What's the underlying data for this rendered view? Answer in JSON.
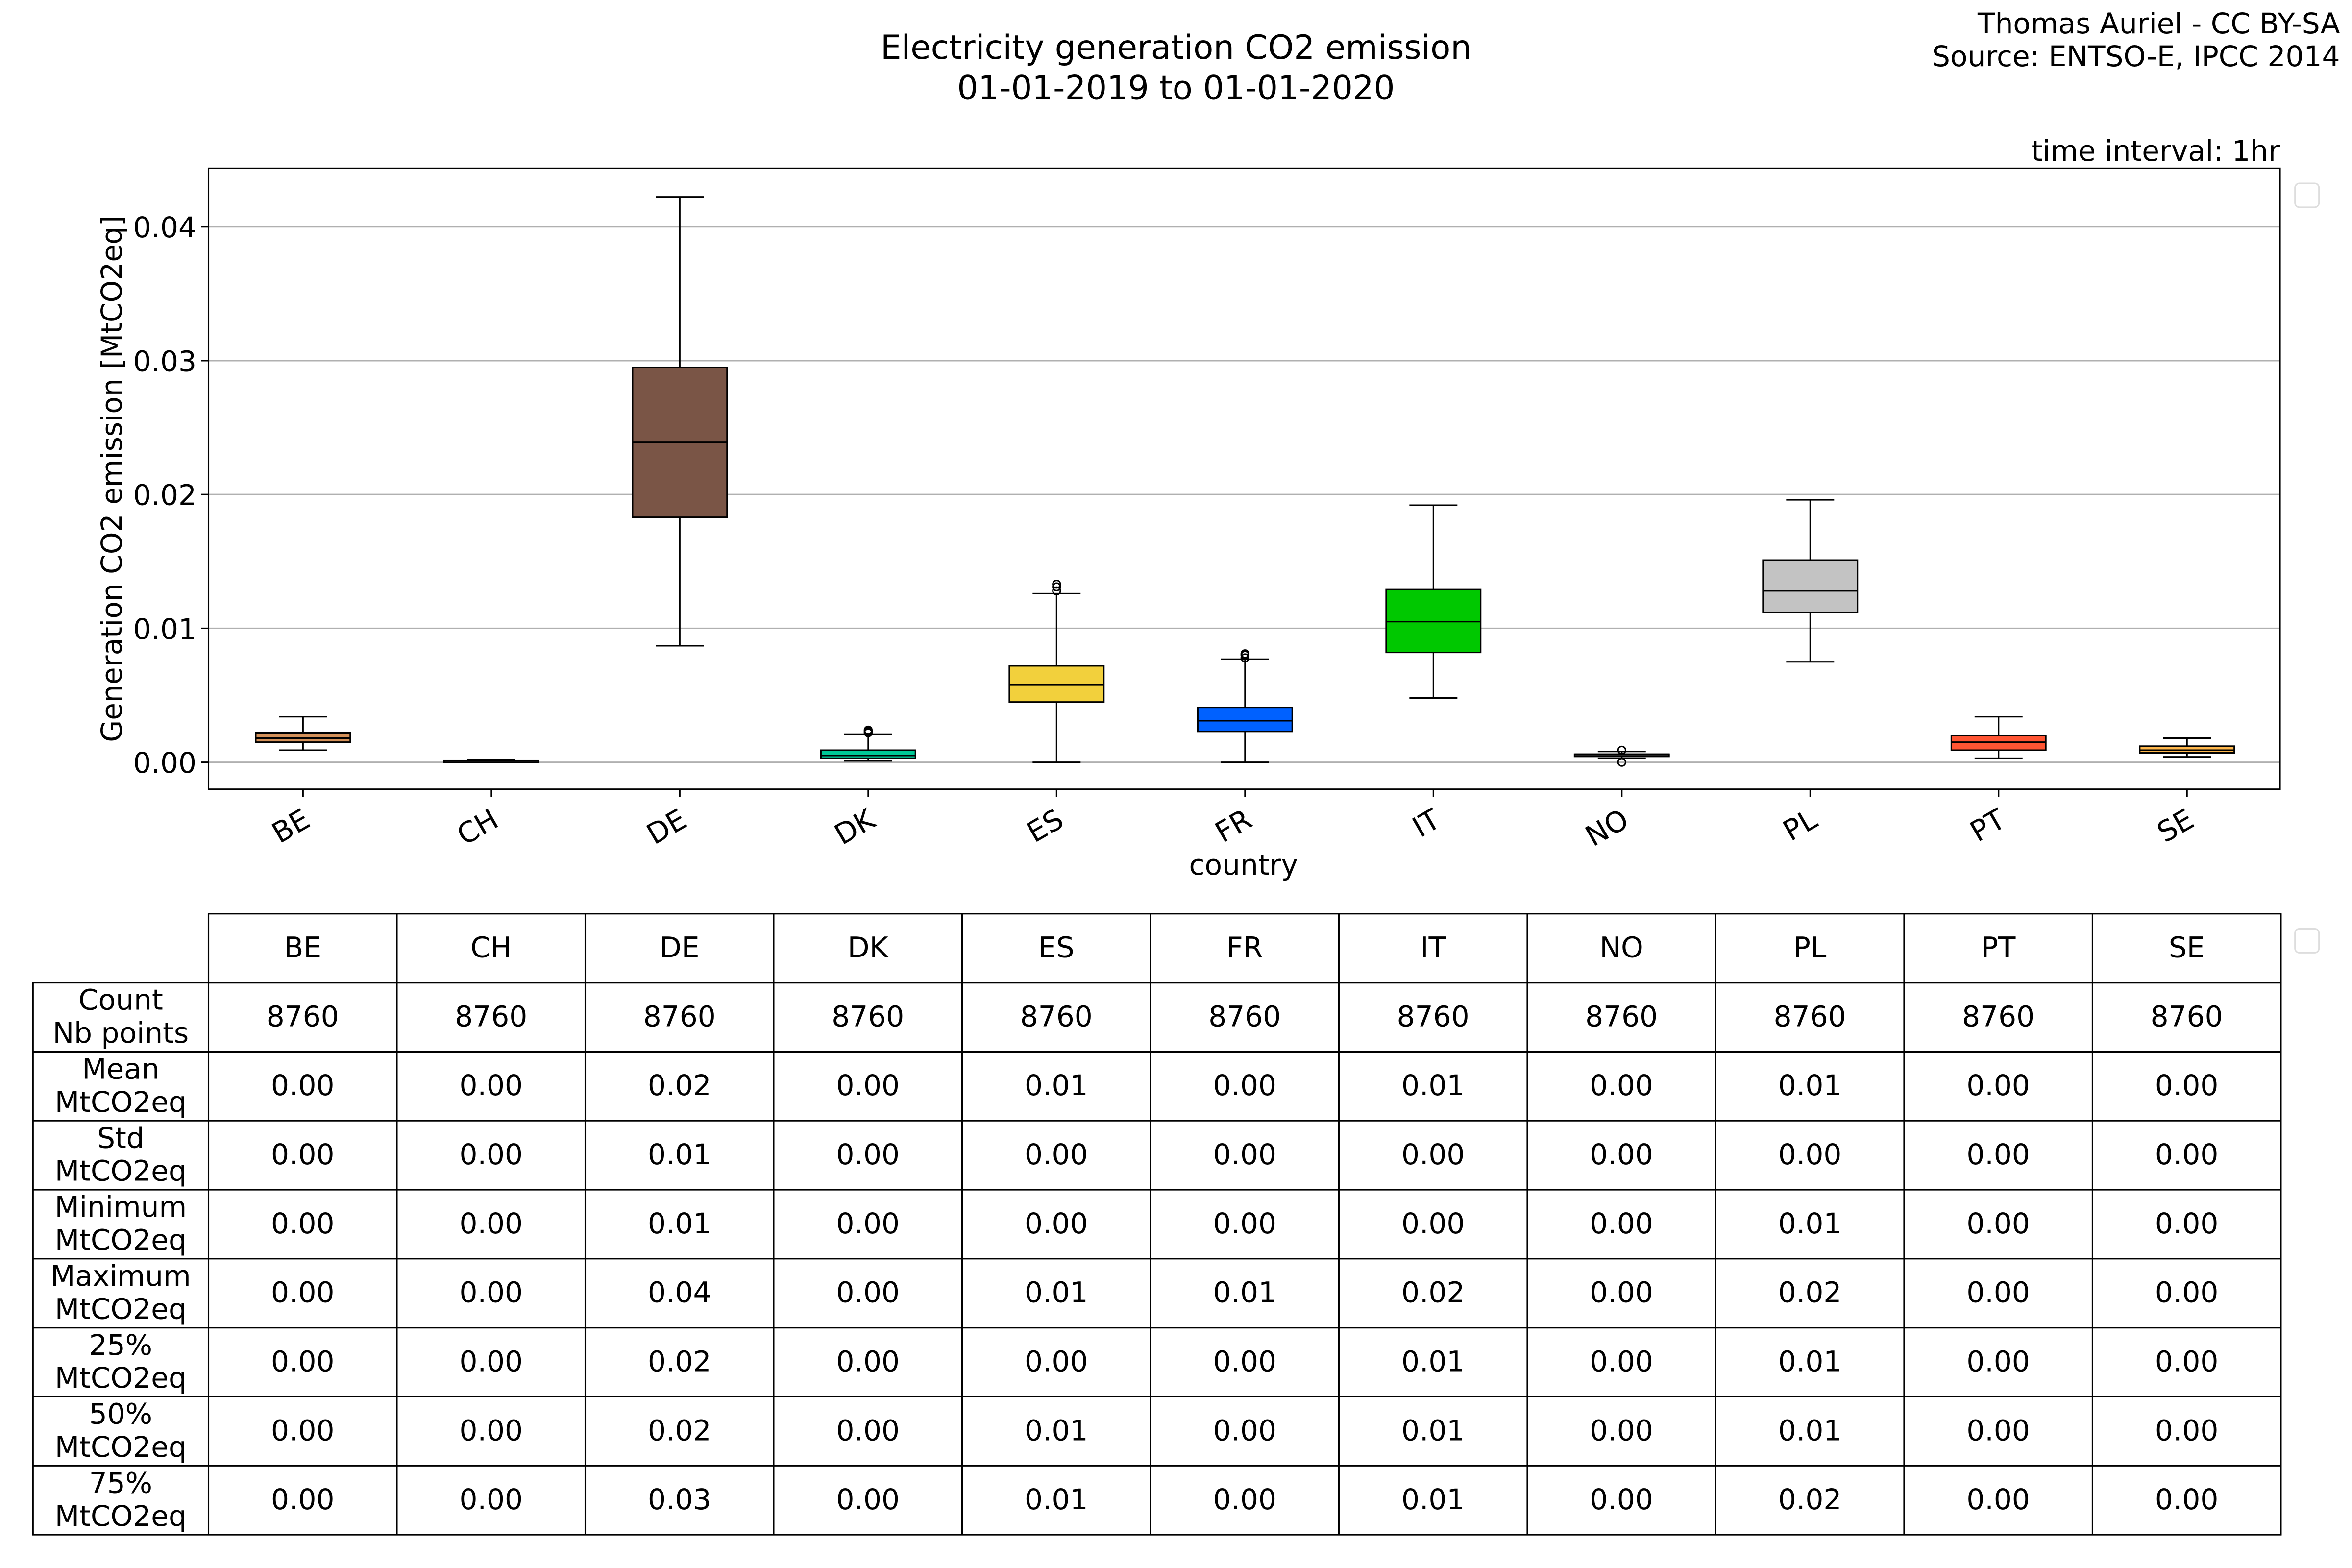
{
  "chart_data": {
    "type": "box",
    "title": "Electricity generation CO2 emission",
    "subtitle": "01-01-2019 to 01-01-2020",
    "credit": "Thomas Auriel - CC BY-SA",
    "source": "Source: ENTSO-E, IPCC 2014",
    "annotation": "time interval: 1hr",
    "xlabel": "country",
    "ylabel": "Generation CO2 emission [MtCO2eq]",
    "ylim": [
      -0.002,
      0.0443
    ],
    "yticks": [
      0.0,
      0.01,
      0.02,
      0.03,
      0.04
    ],
    "ytick_labels": [
      "0.00",
      "0.01",
      "0.02",
      "0.03",
      "0.04"
    ],
    "grid": "horizontal",
    "categories": [
      "BE",
      "CH",
      "DE",
      "DK",
      "ES",
      "FR",
      "IT",
      "NO",
      "PL",
      "PT",
      "SE"
    ],
    "boxes": [
      {
        "name": "BE",
        "color": "#d4915a",
        "whislo": 0.0009,
        "q1": 0.0015,
        "med": 0.0018,
        "q3": 0.0022,
        "whishi": 0.0034,
        "fliers": []
      },
      {
        "name": "CH",
        "color": "#444444",
        "whislo": 0.0,
        "q1": 5e-05,
        "med": 0.0001,
        "q3": 0.00015,
        "whishi": 0.0002,
        "fliers": []
      },
      {
        "name": "DE",
        "color": "#7a5546",
        "whislo": 0.0087,
        "q1": 0.0183,
        "med": 0.0239,
        "q3": 0.0295,
        "whishi": 0.0422,
        "fliers": []
      },
      {
        "name": "DK",
        "color": "#00c896",
        "whislo": 0.0001,
        "q1": 0.0003,
        "med": 0.0005,
        "q3": 0.0009,
        "whishi": 0.0021,
        "fliers": [
          0.0022,
          0.0023,
          0.0024
        ]
      },
      {
        "name": "ES",
        "color": "#f2d03c",
        "whislo": 0.0,
        "q1": 0.0045,
        "med": 0.0058,
        "q3": 0.0072,
        "whishi": 0.0126,
        "fliers": [
          0.0128,
          0.0131,
          0.0133
        ]
      },
      {
        "name": "FR",
        "color": "#0061ff",
        "whislo": 0.0,
        "q1": 0.0023,
        "med": 0.0031,
        "q3": 0.0041,
        "whishi": 0.0077,
        "fliers": [
          0.0078,
          0.008,
          0.0081
        ]
      },
      {
        "name": "IT",
        "color": "#00c800",
        "whislo": 0.0048,
        "q1": 0.0082,
        "med": 0.0105,
        "q3": 0.0129,
        "whishi": 0.0192,
        "fliers": []
      },
      {
        "name": "NO",
        "color": "#222222",
        "whislo": 0.0003,
        "q1": 0.0005,
        "med": 0.0006,
        "q3": 0.0006,
        "whishi": 0.0008,
        "fliers": [
          0.0009,
          0.0
        ]
      },
      {
        "name": "PL",
        "color": "#c3c3c3",
        "whislo": 0.0075,
        "q1": 0.0112,
        "med": 0.0128,
        "q3": 0.0151,
        "whishi": 0.0196,
        "fliers": []
      },
      {
        "name": "PT",
        "color": "#ff5533",
        "whislo": 0.0003,
        "q1": 0.0009,
        "med": 0.0015,
        "q3": 0.002,
        "whishi": 0.0034,
        "fliers": []
      },
      {
        "name": "SE",
        "color": "#ffb84d",
        "whislo": 0.0004,
        "q1": 0.0007,
        "med": 0.0009,
        "q3": 0.0012,
        "whishi": 0.0018,
        "fliers": []
      }
    ]
  },
  "table": {
    "columns": [
      "BE",
      "CH",
      "DE",
      "DK",
      "ES",
      "FR",
      "IT",
      "NO",
      "PL",
      "PT",
      "SE"
    ],
    "rows": [
      {
        "label": [
          "Count",
          "Nb points"
        ],
        "values": [
          "8760",
          "8760",
          "8760",
          "8760",
          "8760",
          "8760",
          "8760",
          "8760",
          "8760",
          "8760",
          "8760"
        ]
      },
      {
        "label": [
          "Mean",
          "MtCO2eq"
        ],
        "values": [
          "0.00",
          "0.00",
          "0.02",
          "0.00",
          "0.01",
          "0.00",
          "0.01",
          "0.00",
          "0.01",
          "0.00",
          "0.00"
        ]
      },
      {
        "label": [
          "Std",
          "MtCO2eq"
        ],
        "values": [
          "0.00",
          "0.00",
          "0.01",
          "0.00",
          "0.00",
          "0.00",
          "0.00",
          "0.00",
          "0.00",
          "0.00",
          "0.00"
        ]
      },
      {
        "label": [
          "Minimum",
          "MtCO2eq"
        ],
        "values": [
          "0.00",
          "0.00",
          "0.01",
          "0.00",
          "0.00",
          "0.00",
          "0.00",
          "0.00",
          "0.01",
          "0.00",
          "0.00"
        ]
      },
      {
        "label": [
          "Maximum",
          "MtCO2eq"
        ],
        "values": [
          "0.00",
          "0.00",
          "0.04",
          "0.00",
          "0.01",
          "0.01",
          "0.02",
          "0.00",
          "0.02",
          "0.00",
          "0.00"
        ]
      },
      {
        "label": [
          "25%",
          "MtCO2eq"
        ],
        "values": [
          "0.00",
          "0.00",
          "0.02",
          "0.00",
          "0.00",
          "0.00",
          "0.01",
          "0.00",
          "0.01",
          "0.00",
          "0.00"
        ]
      },
      {
        "label": [
          "50%",
          "MtCO2eq"
        ],
        "values": [
          "0.00",
          "0.00",
          "0.02",
          "0.00",
          "0.01",
          "0.00",
          "0.01",
          "0.00",
          "0.01",
          "0.00",
          "0.00"
        ]
      },
      {
        "label": [
          "75%",
          "MtCO2eq"
        ],
        "values": [
          "0.00",
          "0.00",
          "0.03",
          "0.00",
          "0.01",
          "0.00",
          "0.01",
          "0.00",
          "0.02",
          "0.00",
          "0.00"
        ]
      }
    ]
  }
}
